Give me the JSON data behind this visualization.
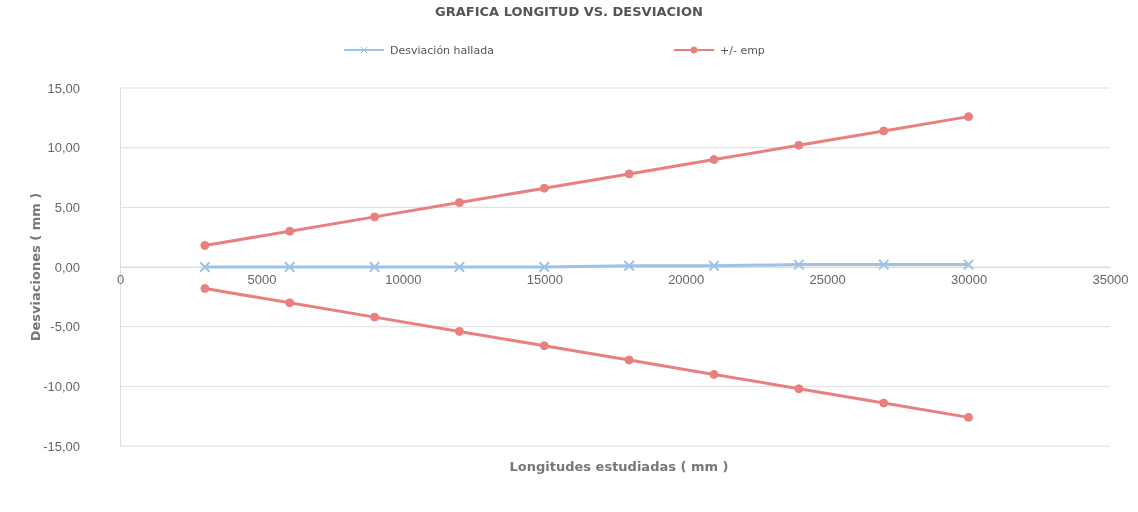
{
  "chart_data": {
    "type": "line",
    "title": "GRAFICA LONGITUD VS. DESVIACION",
    "xlabel": "Longitudes estudiadas  ( mm )",
    "ylabel": "Desviaciones ( mm )",
    "x": [
      3000,
      6000,
      9000,
      12000,
      15000,
      18000,
      21000,
      24000,
      27000,
      30000
    ],
    "series": [
      {
        "name": "Desviación hallada",
        "color": "#9dc3e6",
        "marker": "cross",
        "values": [
          0,
          0,
          0,
          0,
          0,
          0.1,
          0.1,
          0.2,
          0.2,
          0.2
        ]
      },
      {
        "name": "+/- emp",
        "color": "#e88080",
        "marker": "circle",
        "values": [
          1.8,
          3,
          4.2,
          5.4,
          6.6,
          7.8,
          9,
          10.2,
          11.4,
          12.6
        ]
      },
      {
        "color": "#e88080",
        "marker": "circle",
        "values": [
          -1.8,
          -3,
          -4.2,
          -5.4,
          -6.6,
          -7.8,
          -9,
          -10.2,
          -11.4,
          -12.6
        ]
      }
    ],
    "xlim": [
      0,
      35000
    ],
    "xticks": [
      0,
      5000,
      10000,
      15000,
      20000,
      25000,
      30000,
      35000
    ],
    "ylim": [
      -15,
      15
    ],
    "yticks": [
      {
        "value": -15,
        "label": "-15,00"
      },
      {
        "value": -10,
        "label": "-10,00"
      },
      {
        "value": -5,
        "label": "-5,00"
      },
      {
        "value": 0,
        "label": "0,00"
      },
      {
        "value": 5,
        "label": "5,00"
      },
      {
        "value": 10,
        "label": "10,00"
      },
      {
        "value": 15,
        "label": "15,00"
      }
    ],
    "grid": "y",
    "legend": "top"
  }
}
